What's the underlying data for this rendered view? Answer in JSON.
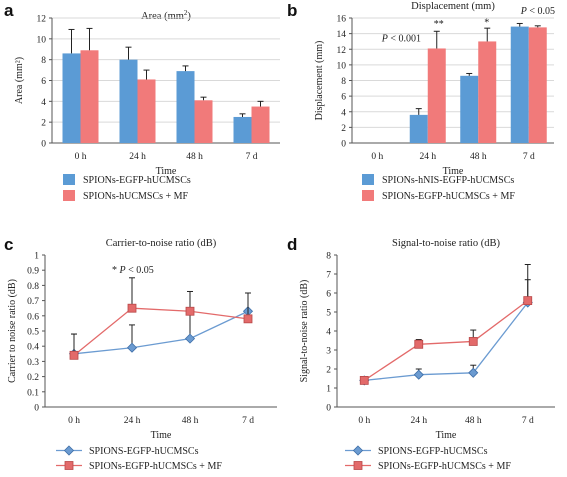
{
  "colors": {
    "blue": "#5b9bd5",
    "red": "#f17a7a",
    "line_blue": "#6b9bd1",
    "line_red": "#e36a6a",
    "axis": "#555555",
    "grid": "#d9d9d9"
  },
  "chart_data": [
    {
      "panel": "a",
      "type": "bar",
      "title": "Area (mm²)",
      "xlabel": "Time",
      "ylabel": "Area (mm²)",
      "categories": [
        "0 h",
        "24 h",
        "48 h",
        "7 d"
      ],
      "ylim": [
        0,
        12
      ],
      "yticks": [
        "0",
        "2",
        "4",
        "6",
        "8",
        "10",
        "12"
      ],
      "grid": true,
      "series": [
        {
          "name": "SPIONs-EGFP-hUCMSCs",
          "color": "blue",
          "values": [
            8.6,
            8.0,
            6.9,
            2.5
          ],
          "errors": [
            2.3,
            1.2,
            0.5,
            0.3
          ]
        },
        {
          "name": "SPIONs-hUCMSCs + MF",
          "color": "red",
          "values": [
            8.9,
            6.1,
            4.1,
            3.5
          ],
          "errors": [
            2.1,
            0.9,
            0.3,
            0.5
          ]
        }
      ],
      "annotations": []
    },
    {
      "panel": "b",
      "type": "bar",
      "title": "Displacement (mm)",
      "xlabel": "Time",
      "ylabel": "Displacement (mm)",
      "categories": [
        "0 h",
        "24 h",
        "48 h",
        "7 d"
      ],
      "ylim": [
        0,
        16
      ],
      "yticks": [
        "0",
        "2",
        "4",
        "6",
        "8",
        "10",
        "12",
        "14",
        "16"
      ],
      "grid": true,
      "series": [
        {
          "name": "SPIONs-hNIS-EGFP-hUCMSCs",
          "color": "blue",
          "values": [
            0,
            3.6,
            8.6,
            14.9
          ],
          "errors": [
            0,
            0.8,
            0.3,
            0.4
          ]
        },
        {
          "name": "SPIONs-EGFP-hUCMSCs + MF",
          "color": "red",
          "values": [
            0,
            12.1,
            13.0,
            14.8
          ],
          "errors": [
            0,
            2.2,
            1.7,
            0.2
          ]
        }
      ],
      "annotations": [
        {
          "text": "P < 0.001",
          "italic_p": true,
          "cat": 1,
          "y": 12.1,
          "dx": -46,
          "dy": -7
        },
        {
          "text": "**",
          "cat": 1,
          "y": 14.6,
          "dx": 6,
          "dy": -2
        },
        {
          "text": "*",
          "cat": 2,
          "y": 14.8,
          "dx": 6,
          "dy": -2
        },
        {
          "text": "P < 0.05",
          "italic_p": true,
          "cat": 3,
          "y": 16.0,
          "dx": -8,
          "dy": -4
        }
      ]
    },
    {
      "panel": "c",
      "type": "line",
      "title": "Carrier-to-noise ratio (dB)",
      "xlabel": "Time",
      "ylabel": "Carrier to noise ratio (dB)",
      "categories": [
        "0 h",
        "24 h",
        "48 h",
        "7 d"
      ],
      "ylim": [
        0,
        1
      ],
      "yticks": [
        "0",
        "0.1",
        "0.2",
        "0.3",
        "0.4",
        "0.5",
        "0.6",
        "0.7",
        "0.8",
        "0.9",
        "1"
      ],
      "grid": false,
      "series": [
        {
          "name": "SPIONS-EGFP-hUCMSCs",
          "color": "line_blue",
          "marker": "diamond",
          "values": [
            0.35,
            0.39,
            0.45,
            0.63
          ],
          "errors": [
            0.13,
            0.15,
            0.19,
            0.12
          ]
        },
        {
          "name": "SPIONs-EGFP-hUCMSCs + MF",
          "color": "line_red",
          "marker": "square",
          "values": [
            0.34,
            0.65,
            0.63,
            0.58
          ],
          "errors": [
            0.14,
            0.2,
            0.13,
            0.17
          ]
        }
      ],
      "annotations": [
        {
          "text": "* P < 0.05",
          "italic_p": true,
          "cat": 1,
          "y": 0.88,
          "dx": -20,
          "dy": 0
        }
      ]
    },
    {
      "panel": "d",
      "type": "line",
      "title": "Signal-to-noise ratio (dB)",
      "xlabel": "Time",
      "ylabel": "Signal-to-noise ratio (dB)",
      "categories": [
        "0 h",
        "24 h",
        "48 h",
        "7 d"
      ],
      "ylim": [
        0,
        8
      ],
      "yticks": [
        "0",
        "1",
        "2",
        "3",
        "4",
        "5",
        "6",
        "7",
        "8"
      ],
      "grid": false,
      "series": [
        {
          "name": "SPIONS-EGFP-hUCMSCs",
          "color": "line_blue",
          "marker": "diamond",
          "values": [
            1.4,
            1.7,
            1.8,
            5.5
          ],
          "errors": [
            0.2,
            0.3,
            0.4,
            1.2
          ]
        },
        {
          "name": "SPIONs-EGFP-hUCMSCs + MF",
          "color": "line_red",
          "marker": "square",
          "values": [
            1.4,
            3.3,
            3.45,
            5.6
          ],
          "errors": [
            0.2,
            0.25,
            0.6,
            1.9
          ]
        }
      ],
      "annotations": []
    }
  ]
}
